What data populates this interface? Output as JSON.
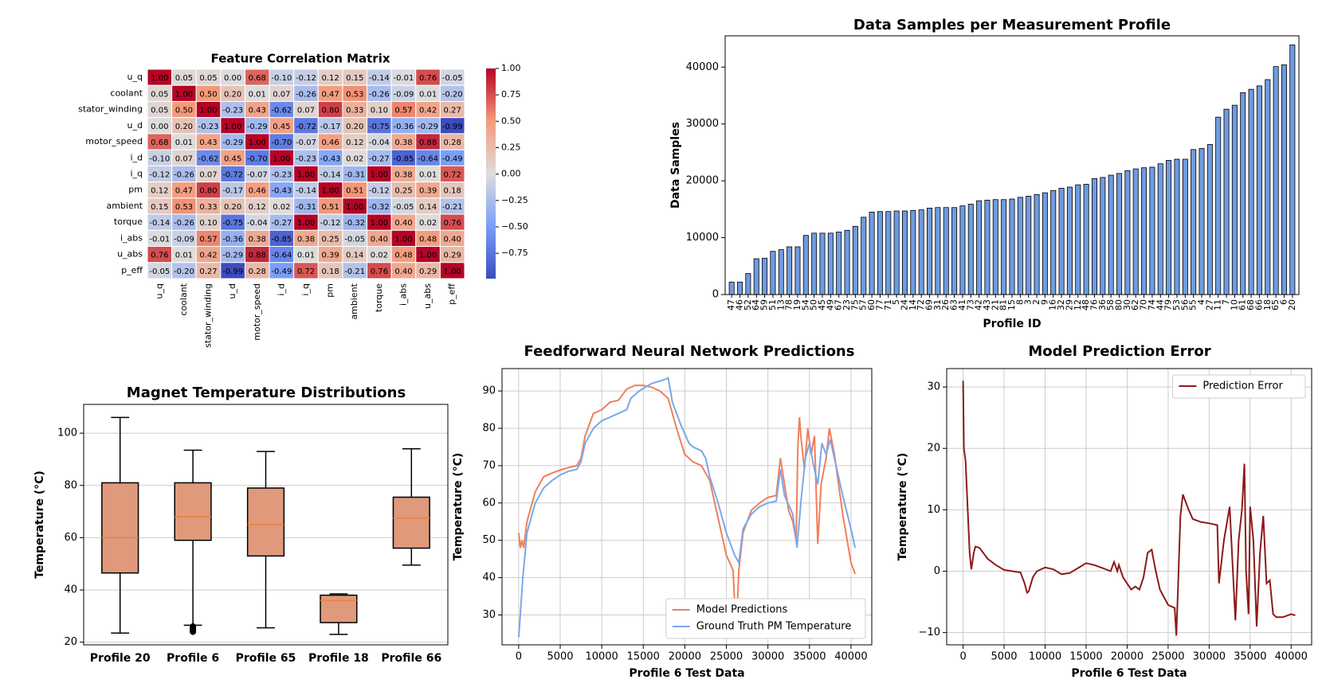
{
  "chart_data": [
    {
      "type": "heatmap",
      "title": "Feature Correlation Matrix",
      "labels": [
        "u_q",
        "coolant",
        "stator_winding",
        "u_d",
        "motor_speed",
        "i_d",
        "i_q",
        "pm",
        "ambient",
        "torque",
        "i_abs",
        "u_abs",
        "p_eff"
      ],
      "values": [
        [
          1,
          0.05,
          0.05,
          0,
          0.68,
          -0.1,
          -0.12,
          0.12,
          0.15,
          -0.14,
          -0.01,
          0.76,
          -0.05
        ],
        [
          0.05,
          1,
          0.5,
          0.2,
          0.01,
          0.07,
          -0.26,
          0.47,
          0.53,
          -0.26,
          -0.09,
          0.01,
          -0.2
        ],
        [
          0.05,
          0.5,
          1,
          -0.23,
          0.43,
          -0.62,
          0.07,
          0.8,
          0.33,
          0.1,
          0.57,
          0.42,
          0.27
        ],
        [
          0,
          0.2,
          -0.23,
          1,
          -0.29,
          0.45,
          -0.72,
          -0.17,
          0.2,
          -0.75,
          -0.36,
          -0.29,
          -0.99
        ],
        [
          0.68,
          0.01,
          0.43,
          -0.29,
          1,
          -0.7,
          -0.07,
          0.46,
          0.12,
          -0.04,
          0.38,
          0.88,
          0.28
        ],
        [
          -0.1,
          0.07,
          -0.62,
          0.45,
          -0.7,
          1,
          -0.23,
          -0.43,
          0.02,
          -0.27,
          -0.85,
          -0.64,
          -0.49
        ],
        [
          -0.12,
          -0.26,
          0.07,
          -0.72,
          -0.07,
          -0.23,
          1,
          -0.14,
          -0.31,
          1,
          0.38,
          0.01,
          0.72
        ],
        [
          0.12,
          0.47,
          0.8,
          -0.17,
          0.46,
          -0.43,
          -0.14,
          1,
          0.51,
          -0.12,
          0.25,
          0.39,
          0.18
        ],
        [
          0.15,
          0.53,
          0.33,
          0.2,
          0.12,
          0.02,
          -0.31,
          0.51,
          1,
          -0.32,
          -0.05,
          0.14,
          -0.21
        ],
        [
          -0.14,
          -0.26,
          0.1,
          -0.75,
          -0.04,
          -0.27,
          1,
          -0.12,
          -0.32,
          1,
          0.4,
          0.02,
          0.76
        ],
        [
          -0.01,
          -0.09,
          0.57,
          -0.36,
          0.38,
          -0.85,
          0.38,
          0.25,
          -0.05,
          0.4,
          1,
          0.48,
          0.4
        ],
        [
          0.76,
          0.01,
          0.42,
          -0.29,
          0.88,
          -0.64,
          0.01,
          0.39,
          0.14,
          0.02,
          0.48,
          1,
          0.29
        ],
        [
          -0.05,
          -0.2,
          0.27,
          -0.99,
          0.28,
          -0.49,
          0.72,
          0.18,
          -0.21,
          0.76,
          0.4,
          0.29,
          1
        ]
      ],
      "value_labels": [
        [
          "1.00",
          "0.05",
          "0.05",
          "0.00",
          "0.68",
          "-0.10",
          "-0.12",
          "0.12",
          "0.15",
          "-0.14",
          "-0.01",
          "0.76",
          "-0.05"
        ],
        [
          "0.05",
          "1.00",
          "0.50",
          "0.20",
          "0.01",
          "0.07",
          "-0.26",
          "0.47",
          "0.53",
          "-0.26",
          "-0.09",
          "0.01",
          "-0.20"
        ],
        [
          "0.05",
          "0.50",
          "1.00",
          "-0.23",
          "0.43",
          "-0.62",
          "0.07",
          "0.80",
          "0.33",
          "0.10",
          "0.57",
          "0.42",
          "0.27"
        ],
        [
          "0.00",
          "0.20",
          "-0.23",
          "1.00",
          "-0.29",
          "0.45",
          "-0.72",
          "-0.17",
          "0.20",
          "-0.75",
          "-0.36",
          "-0.29",
          "-0.99"
        ],
        [
          "0.68",
          "0.01",
          "0.43",
          "-0.29",
          "1.00",
          "-0.70",
          "-0.07",
          "0.46",
          "0.12",
          "-0.04",
          "0.38",
          "0.88",
          "0.28"
        ],
        [
          "-0.10",
          "0.07",
          "-0.62",
          "0.45",
          "-0.70",
          "1.00",
          "-0.23",
          "-0.43",
          "0.02",
          "-0.27",
          "-0.85",
          "-0.64",
          "-0.49"
        ],
        [
          "-0.12",
          "-0.26",
          "0.07",
          "-0.72",
          "-0.07",
          "-0.23",
          "1.00",
          "-0.14",
          "-0.31",
          "1.00",
          "0.38",
          "0.01",
          "0.72"
        ],
        [
          "0.12",
          "0.47",
          "0.80",
          "-0.17",
          "0.46",
          "-0.43",
          "-0.14",
          "1.00",
          "0.51",
          "-0.12",
          "0.25",
          "0.39",
          "0.18"
        ],
        [
          "0.15",
          "0.53",
          "0.33",
          "0.20",
          "0.12",
          "0.02",
          "-0.31",
          "0.51",
          "1.00",
          "-0.32",
          "-0.05",
          "0.14",
          "-0.21"
        ],
        [
          "-0.14",
          "-0.26",
          "0.10",
          "-0.75",
          "-0.04",
          "-0.27",
          "1.00",
          "-0.12",
          "-0.32",
          "1.00",
          "0.40",
          "0.02",
          "0.76"
        ],
        [
          "-0.01",
          "-0.09",
          "0.57",
          "-0.36",
          "0.38",
          "-0.85",
          "0.38",
          "0.25",
          "-0.05",
          "0.40",
          "1.00",
          "0.48",
          "0.40"
        ],
        [
          "0.76",
          "0.01",
          "0.42",
          "-0.29",
          "0.88",
          "-0.64",
          "0.01",
          "0.39",
          "0.14",
          "0.02",
          "0.48",
          "1.00",
          "0.29"
        ],
        [
          "-0.05",
          "-0.20",
          "0.27",
          "-0.99",
          "0.28",
          "-0.49",
          "0.72",
          "0.18",
          "-0.21",
          "0.76",
          "0.40",
          "0.29",
          "1.00"
        ]
      ],
      "colormap": [
        "#3b4cc0",
        "#7b9ff9",
        "#dddddd",
        "#f49a7b",
        "#b40426"
      ],
      "clim": [
        -0.99,
        1.0
      ],
      "colorbar_ticks": [
        {
          "value": 1,
          "label": "1.00"
        },
        {
          "value": 0.75,
          "label": "0.75"
        },
        {
          "value": 0.5,
          "label": "0.50"
        },
        {
          "value": 0.25,
          "label": "0.25"
        },
        {
          "value": 0,
          "label": "0.00"
        },
        {
          "value": -0.25,
          "label": "−0.25"
        },
        {
          "value": -0.5,
          "label": "−0.50"
        },
        {
          "value": -0.75,
          "label": "−0.75"
        }
      ]
    },
    {
      "type": "bar",
      "title": "Data Samples per Measurement Profile",
      "xlabel": "Profile ID",
      "ylabel": "Data Samples",
      "categories": [
        "47",
        "46",
        "52",
        "64",
        "59",
        "51",
        "13",
        "78",
        "19",
        "54",
        "50",
        "45",
        "49",
        "67",
        "23",
        "75",
        "57",
        "60",
        "77",
        "71",
        "5",
        "24",
        "14",
        "72",
        "69",
        "31",
        "26",
        "63",
        "41",
        "73",
        "42",
        "43",
        "21",
        "81",
        "15",
        "8",
        "3",
        "2",
        "9",
        "16",
        "32",
        "29",
        "12",
        "48",
        "76",
        "36",
        "58",
        "80",
        "30",
        "62",
        "70",
        "74",
        "44",
        "79",
        "53",
        "56",
        "55",
        "4",
        "27",
        "11",
        "7",
        "10",
        "61",
        "68",
        "66",
        "18",
        "65",
        "6",
        "20"
      ],
      "values": [
        2200,
        2200,
        3700,
        6300,
        6400,
        7600,
        7900,
        8400,
        8400,
        10400,
        10800,
        10800,
        10800,
        11000,
        11300,
        12000,
        13600,
        14500,
        14600,
        14600,
        14700,
        14700,
        14800,
        14900,
        15200,
        15300,
        15300,
        15300,
        15600,
        15900,
        16500,
        16600,
        16700,
        16700,
        16800,
        17100,
        17300,
        17600,
        17900,
        18300,
        18700,
        18900,
        19300,
        19400,
        20400,
        20600,
        21000,
        21300,
        21800,
        22100,
        22300,
        22400,
        23000,
        23600,
        23800,
        23800,
        25500,
        25700,
        26400,
        31200,
        32600,
        33300,
        35500,
        36100,
        36700,
        37800,
        40100,
        40400,
        43900
      ],
      "color": "#6f9be0",
      "edgecolor": "#000000",
      "ylim": [
        0,
        45500
      ],
      "yticks": [
        0,
        10000,
        20000,
        30000,
        40000
      ]
    },
    {
      "type": "box",
      "title": "Magnet Temperature Distributions",
      "ylabel": "Temperature (°C)",
      "categories": [
        "Profile 20",
        "Profile 6",
        "Profile 65",
        "Profile 18",
        "Profile 66"
      ],
      "boxes": [
        {
          "low": 23.5,
          "q1": 46.5,
          "median": 60,
          "q3": 81,
          "high": 106,
          "outliers": []
        },
        {
          "low": 26.5,
          "q1": 59,
          "median": 68,
          "q3": 81,
          "high": 93.5,
          "outliers": [
            24,
            24.5,
            25,
            25.5,
            26
          ]
        },
        {
          "low": 25.5,
          "q1": 53,
          "median": 65,
          "q3": 79,
          "high": 93,
          "outliers": []
        },
        {
          "low": 23,
          "q1": 27.5,
          "median": 36,
          "q3": 38,
          "high": 38.5,
          "outliers": []
        },
        {
          "low": 49.5,
          "q1": 56,
          "median": 67.5,
          "q3": 75.5,
          "high": 94,
          "outliers": []
        }
      ],
      "color": "#e0997a",
      "median_color": "#e8823a",
      "ylim": [
        19,
        111
      ],
      "yticks": [
        20,
        40,
        60,
        80,
        100
      ],
      "grid": "y"
    },
    {
      "type": "line",
      "title": "Feedforward Neural Network Predictions",
      "xlabel": "Profile 6 Test Data",
      "ylabel": "Temperature (°C)",
      "series": [
        {
          "name": "Model Predictions",
          "color": "#f07f5a",
          "x": [
            0,
            200,
            400,
            600,
            1000,
            2000,
            3000,
            4000,
            5000,
            6000,
            7000,
            7500,
            8000,
            9000,
            10000,
            11000,
            12000,
            13000,
            14000,
            15000,
            16000,
            17000,
            18000,
            19000,
            20000,
            21000,
            22000,
            22500,
            23000,
            24000,
            25000,
            25800,
            26000,
            26300,
            26500,
            27000,
            28000,
            29000,
            30000,
            31000,
            31500,
            32000,
            32500,
            33000,
            33400,
            33600,
            33800,
            34000,
            34400,
            34800,
            35200,
            35600,
            36000,
            36400,
            37000,
            37400,
            38000,
            39000,
            40000,
            40500
          ],
          "values": [
            52,
            48,
            50,
            48,
            55,
            63,
            67,
            68,
            68.8,
            69.5,
            70,
            72,
            78,
            84,
            85,
            87,
            87.5,
            90.5,
            91.5,
            91.5,
            91,
            90,
            88,
            80,
            73,
            71,
            70,
            68,
            66,
            56,
            46,
            42,
            33,
            32,
            42,
            52,
            58,
            60,
            61.5,
            62,
            72,
            65,
            58,
            55,
            50,
            75,
            83,
            77,
            69,
            80,
            73,
            78,
            49,
            65,
            72,
            80,
            73,
            57,
            44,
            41
          ]
        },
        {
          "name": "Ground Truth PM Temperature",
          "color": "#7ba7ea",
          "x": [
            0,
            200,
            500,
            1000,
            2000,
            3000,
            4000,
            5000,
            6000,
            7000,
            7500,
            8000,
            9000,
            10000,
            11000,
            12000,
            13000,
            13500,
            14500,
            16000,
            17500,
            18000,
            18500,
            19500,
            20500,
            21000,
            22000,
            22500,
            23000,
            24000,
            25000,
            26000,
            26500,
            27000,
            28000,
            29000,
            30000,
            31000,
            31500,
            32000,
            33000,
            33500,
            34000,
            34500,
            35000,
            35500,
            36000,
            36500,
            37000,
            37500,
            38000,
            39000,
            40000,
            40500
          ],
          "values": [
            24,
            30,
            40,
            52,
            60,
            64,
            66,
            67.5,
            68.5,
            69,
            71,
            76,
            80,
            82,
            83,
            84,
            85,
            88,
            90,
            92,
            93,
            93.5,
            87,
            81,
            76,
            75,
            74,
            72,
            67,
            60,
            52,
            46,
            44,
            53,
            57,
            59,
            60,
            60.5,
            69,
            62,
            57,
            48,
            61,
            72,
            76,
            70,
            65,
            76,
            73,
            77,
            72,
            62,
            53,
            48
          ]
        }
      ],
      "xlim": [
        -2000,
        42500
      ],
      "xticks": [
        0,
        5000,
        10000,
        15000,
        20000,
        25000,
        30000,
        35000,
        40000
      ],
      "ylim": [
        22,
        96
      ],
      "yticks": [
        30,
        40,
        50,
        60,
        70,
        80,
        90
      ],
      "grid": true,
      "legend": "lower right"
    },
    {
      "type": "line",
      "title": "Model Prediction Error",
      "xlabel": "Profile 6 Test Data",
      "ylabel": "Temperature (°C)",
      "series": [
        {
          "name": "Prediction Error",
          "color": "#8b1a1a",
          "x": [
            0,
            100,
            300,
            500,
            800,
            1000,
            1300,
            1500,
            2000,
            3000,
            4000,
            5000,
            6000,
            7000,
            7500,
            7800,
            8000,
            8500,
            9000,
            10000,
            11000,
            12000,
            13000,
            14000,
            15000,
            16000,
            17000,
            18000,
            18400,
            18800,
            19000,
            19500,
            20000,
            20500,
            21000,
            21500,
            22000,
            22500,
            23000,
            23200,
            23500,
            24000,
            25000,
            25800,
            26000,
            26200,
            26500,
            26800,
            27500,
            28000,
            29000,
            30000,
            31000,
            31200,
            31800,
            32500,
            32900,
            33200,
            33600,
            34000,
            34300,
            34500,
            34800,
            35000,
            35400,
            35800,
            36200,
            36600,
            37000,
            37400,
            37800,
            38200,
            39000,
            40000,
            40500
          ],
          "values": [
            31,
            20,
            18,
            12,
            3,
            0.3,
            3,
            4,
            3.8,
            2,
            1,
            0.2,
            0,
            -0.2,
            -2,
            -3.5,
            -3.3,
            -1,
            0,
            0.6,
            0.3,
            -0.5,
            -0.3,
            0.5,
            1.3,
            1,
            0.5,
            0,
            1.5,
            0,
            1,
            -1,
            -2,
            -3,
            -2.5,
            -3,
            -1,
            3,
            3.5,
            2,
            0,
            -3,
            -5.5,
            -6,
            -10.5,
            -3,
            9,
            12.5,
            10,
            8.5,
            8,
            7.8,
            7.5,
            -2,
            5,
            10.5,
            0,
            -8,
            5,
            10,
            17.5,
            0,
            -7,
            10.5,
            5,
            -9,
            3,
            9,
            -2,
            -1.5,
            -7,
            -7.5,
            -7.5,
            -7,
            -7.2
          ]
        }
      ],
      "xlim": [
        -2000,
        42500
      ],
      "xticks": [
        0,
        5000,
        10000,
        15000,
        20000,
        25000,
        30000,
        35000,
        40000
      ],
      "ylim": [
        -12,
        33
      ],
      "yticks": [
        {
          "value": -10,
          "label": "−10"
        },
        0,
        10,
        20,
        30
      ],
      "grid": true,
      "legend": "upper right"
    }
  ]
}
